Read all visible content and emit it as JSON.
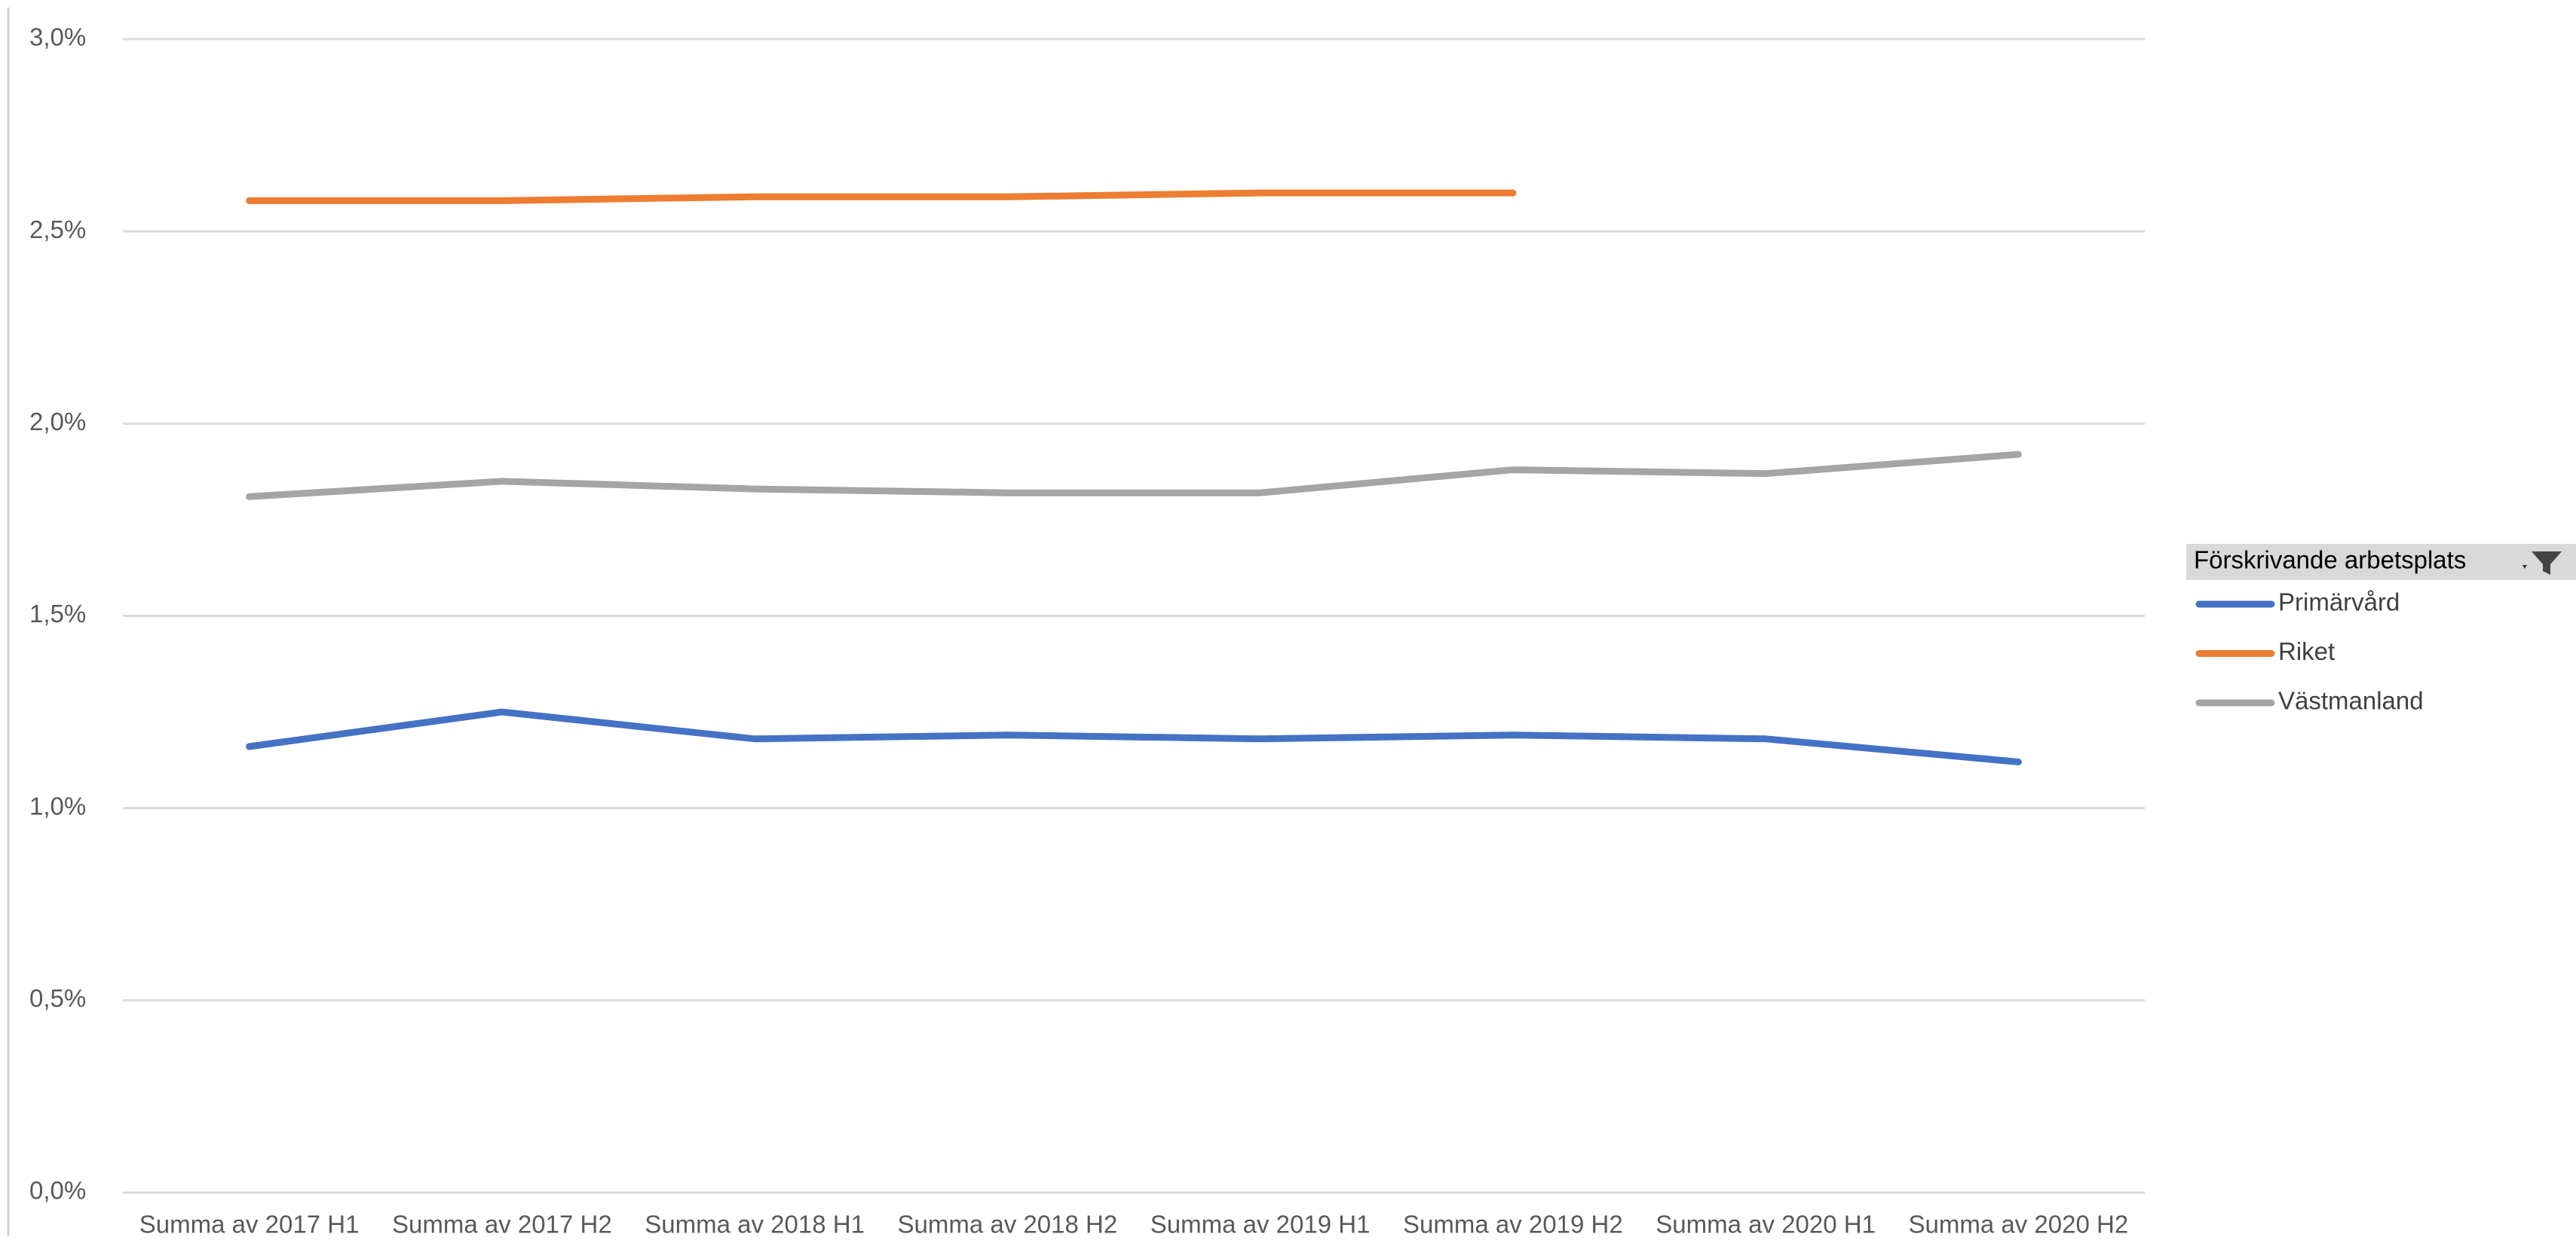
{
  "chart_data": {
    "type": "line",
    "categories": [
      "Summa av 2017 H1",
      "Summa av 2017 H2",
      "Summa av 2018 H1",
      "Summa av 2018 H2",
      "Summa av 2019 H1",
      "Summa av 2019 H2",
      "Summa av 2020 H1",
      "Summa av 2020 H2"
    ],
    "series": [
      {
        "name": "Primärvård",
        "color": "#4472c4",
        "values": [
          1.16,
          1.25,
          1.18,
          1.19,
          1.18,
          1.19,
          1.18,
          1.12
        ]
      },
      {
        "name": "Riket",
        "color": "#ed7d31",
        "values": [
          2.58,
          2.58,
          2.59,
          2.59,
          2.6,
          2.6,
          null,
          null
        ]
      },
      {
        "name": "Västmanland",
        "color": "#a5a5a5",
        "values": [
          1.81,
          1.85,
          1.83,
          1.82,
          1.82,
          1.88,
          1.87,
          1.92
        ]
      }
    ],
    "legend_title": "Förskrivande arbetsplats",
    "legend": "right",
    "grid": true,
    "ylim": [
      0,
      3
    ],
    "yticks": [
      {
        "value": 0,
        "label": "0,0%"
      },
      {
        "value": 0.5,
        "label": "0,5%"
      },
      {
        "value": 1,
        "label": "1,0%"
      },
      {
        "value": 1.5,
        "label": "1,5%"
      },
      {
        "value": 2,
        "label": "2,0%"
      },
      {
        "value": 2.5,
        "label": "2,5%"
      },
      {
        "value": 3,
        "label": "3,0%"
      }
    ]
  }
}
